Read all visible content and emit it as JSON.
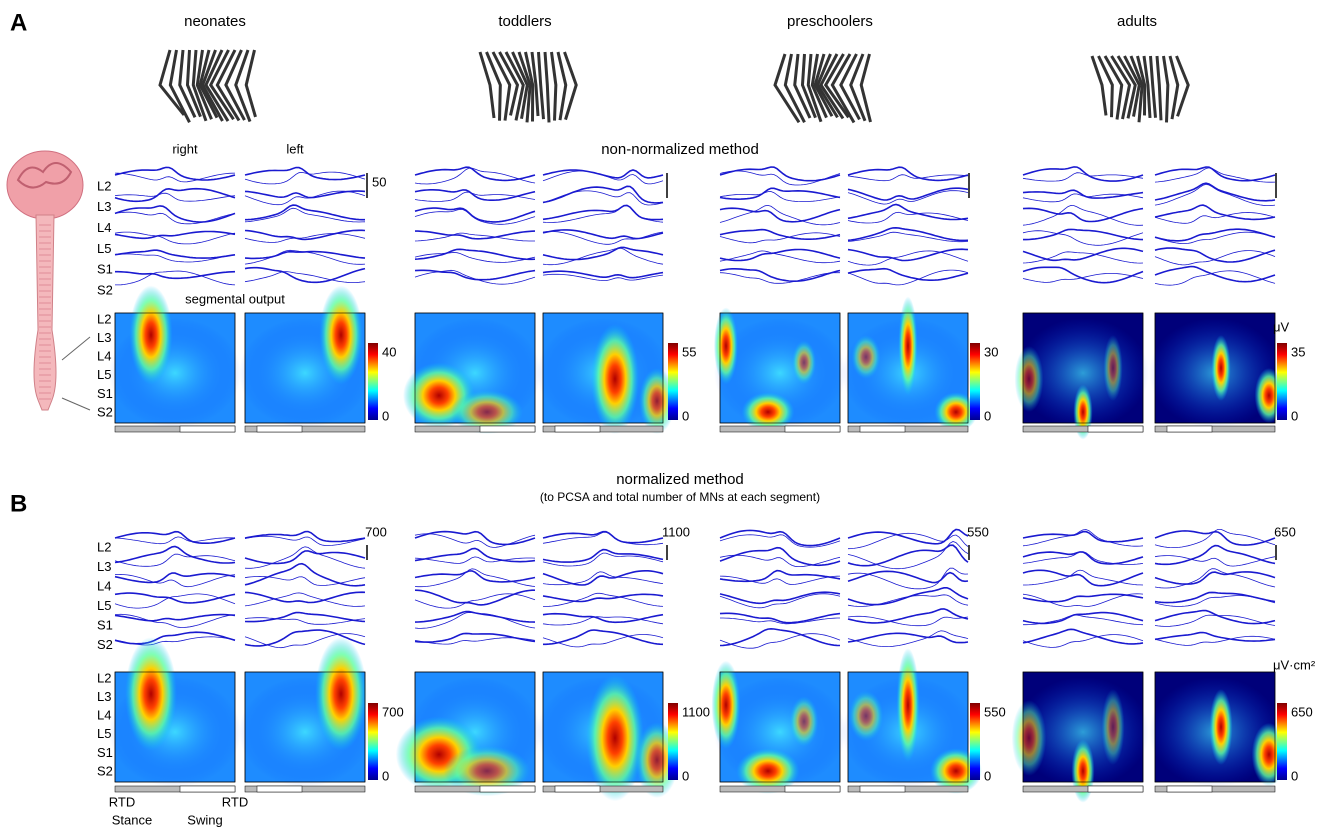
{
  "panel_labels": [
    "A",
    "B"
  ],
  "groups": [
    "neonates",
    "toddlers",
    "preschoolers",
    "adults"
  ],
  "side_labels": [
    "right",
    "left"
  ],
  "segments": [
    "L2",
    "L3",
    "L4",
    "L5",
    "S1",
    "S2"
  ],
  "section_a": {
    "title": "non-normalized method",
    "heatmap_label": "segmental output",
    "trace_scale": 50,
    "colorbar_unit": "μV",
    "colorbar_max": [
      40,
      55,
      30,
      35
    ],
    "colorbar_min": 0
  },
  "section_b": {
    "title": "normalized method",
    "subtitle": "(to PCSA and total number of MNs at each segment)",
    "trace_scale": [
      700,
      1100,
      550,
      650
    ],
    "colorbar_unit": "μV·cm²",
    "colorbar_max": [
      700,
      1100,
      550,
      650
    ],
    "colorbar_min": 0
  },
  "gait_labels": {
    "start": "RTD",
    "end": "RTD",
    "stance": "Stance",
    "swing": "Swing"
  }
}
